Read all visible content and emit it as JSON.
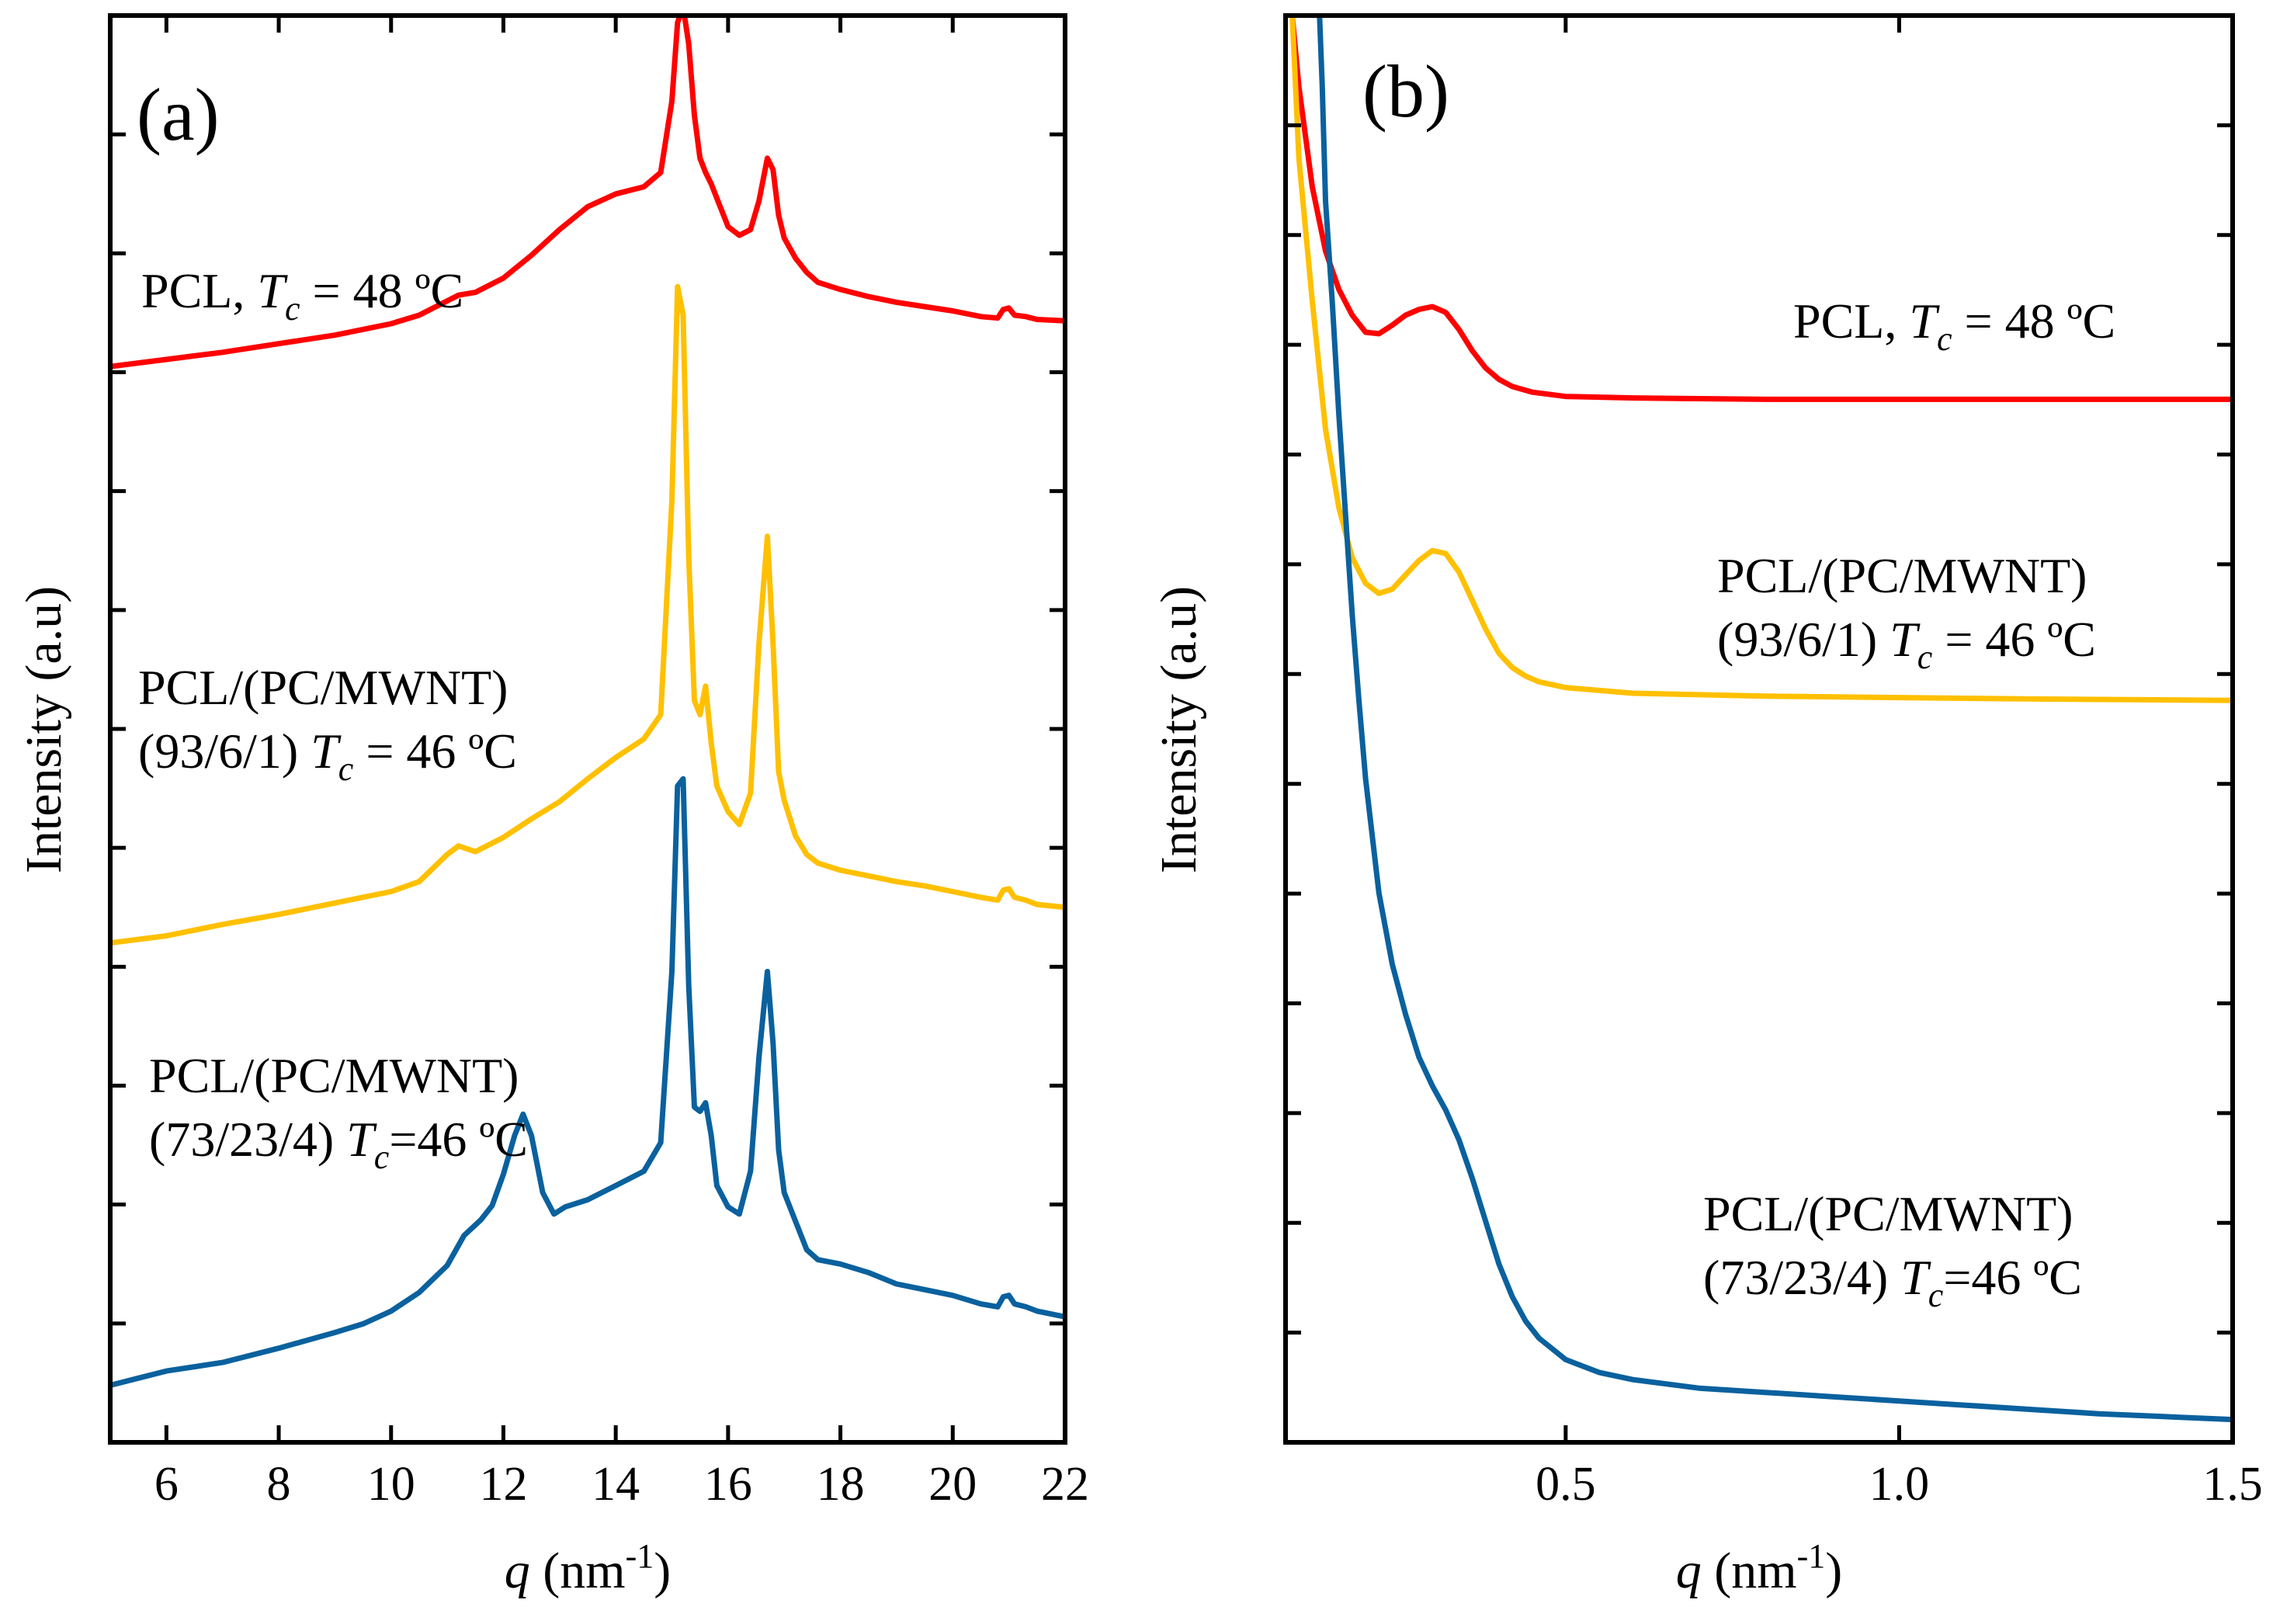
{
  "chart_data": [
    {
      "id": "a",
      "type": "line",
      "panel_label": "(a)",
      "xlabel": {
        "symbol": "q",
        "unit_open": " (nm",
        "unit_sup": "-1",
        "unit_close": ")"
      },
      "ylabel": "Intensity (a.u)",
      "xlim": [
        5,
        22
      ],
      "ylim": [
        0,
        100
      ],
      "xticks": [
        6,
        8,
        10,
        12,
        14,
        16,
        18,
        20,
        22
      ],
      "xtick_labels": [
        "6",
        "8",
        "10",
        "12",
        "14",
        "16",
        "18",
        "20",
        "22"
      ],
      "series": [
        {
          "name": "PCL, Tc = 48 ºC",
          "color": "#ff0000",
          "label_lines": [
            [
              {
                "t": "PCL, "
              },
              {
                "t": "T",
                "i": true
              },
              {
                "t": "c",
                "sub": true
              },
              {
                "t": " = 48 ºC"
              }
            ]
          ],
          "x": [
            5.0,
            6.0,
            7.0,
            8.0,
            9.0,
            10.0,
            10.5,
            11.0,
            11.2,
            11.5,
            12.0,
            12.5,
            13.0,
            13.5,
            14.0,
            14.5,
            14.8,
            15.0,
            15.1,
            15.2,
            15.3,
            15.4,
            15.5,
            15.6,
            15.7,
            15.8,
            16.0,
            16.2,
            16.4,
            16.55,
            16.7,
            16.8,
            16.9,
            17.0,
            17.2,
            17.4,
            17.6,
            18.0,
            18.5,
            19.0,
            19.5,
            20.0,
            20.5,
            20.8,
            20.9,
            21.0,
            21.1,
            21.3,
            21.5,
            22.0
          ],
          "y": [
            75.4,
            75.9,
            76.4,
            77.0,
            77.6,
            78.4,
            79.0,
            80.0,
            80.4,
            80.6,
            81.6,
            83.2,
            85.0,
            86.6,
            87.5,
            88.0,
            89.0,
            94.0,
            99.5,
            100.6,
            98.0,
            93.0,
            90.0,
            89.0,
            88.2,
            87.2,
            85.2,
            84.6,
            85.0,
            87.0,
            90.0,
            89.2,
            86.0,
            84.4,
            83.0,
            82.0,
            81.3,
            80.8,
            80.3,
            79.9,
            79.6,
            79.3,
            78.9,
            78.8,
            79.4,
            79.5,
            79.0,
            78.9,
            78.7,
            78.6
          ]
        },
        {
          "name": "PCL/(PC/MWNT) (93/6/1) Tc = 46 ºC",
          "color": "#ffc000",
          "label_lines": [
            [
              {
                "t": "PCL/(PC/MWNT)"
              }
            ],
            [
              {
                "t": "(93/6/1) "
              },
              {
                "t": "T",
                "i": true
              },
              {
                "t": "c",
                "sub": true
              },
              {
                "t": " = 46 ºC"
              }
            ]
          ],
          "x": [
            5.0,
            6.0,
            7.0,
            8.0,
            9.0,
            10.0,
            10.5,
            11.0,
            11.2,
            11.5,
            12.0,
            12.5,
            13.0,
            13.5,
            14.0,
            14.5,
            14.8,
            15.0,
            15.1,
            15.2,
            15.3,
            15.4,
            15.5,
            15.6,
            15.7,
            15.8,
            16.0,
            16.2,
            16.4,
            16.55,
            16.7,
            16.8,
            16.9,
            17.0,
            17.2,
            17.4,
            17.6,
            18.0,
            18.5,
            19.0,
            19.5,
            20.0,
            20.5,
            20.8,
            20.9,
            21.0,
            21.1,
            21.3,
            21.5,
            22.0
          ],
          "y": [
            35.0,
            35.5,
            36.3,
            37.0,
            37.8,
            38.6,
            39.3,
            41.2,
            41.8,
            41.4,
            42.4,
            43.7,
            44.9,
            46.5,
            48.0,
            49.3,
            51.0,
            66.0,
            81.0,
            79.0,
            62.0,
            52.0,
            51.0,
            53.0,
            49.0,
            46.0,
            44.2,
            43.3,
            45.5,
            56.0,
            63.5,
            56.0,
            47.0,
            45.0,
            42.5,
            41.2,
            40.6,
            40.1,
            39.7,
            39.3,
            39.0,
            38.6,
            38.2,
            38.0,
            38.7,
            38.8,
            38.2,
            38.0,
            37.7,
            37.5
          ]
        },
        {
          "name": "PCL/(PC/MWNT) (73/23/4) Tc=46 ºC",
          "color": "#0a619e",
          "label_lines": [
            [
              {
                "t": "PCL/(PC/MWNT)"
              }
            ],
            [
              {
                "t": "(73/23/4) "
              },
              {
                "t": "T",
                "i": true
              },
              {
                "t": "c",
                "sub": true
              },
              {
                "t": "=46 ºC"
              }
            ]
          ],
          "x": [
            5.0,
            5.5,
            6.0,
            7.0,
            8.0,
            9.0,
            9.5,
            10.0,
            10.5,
            11.0,
            11.3,
            11.6,
            11.8,
            12.0,
            12.2,
            12.35,
            12.5,
            12.7,
            12.9,
            13.1,
            13.5,
            14.0,
            14.5,
            14.8,
            15.0,
            15.1,
            15.2,
            15.3,
            15.4,
            15.5,
            15.6,
            15.7,
            15.8,
            16.0,
            16.2,
            16.4,
            16.55,
            16.7,
            16.8,
            16.9,
            17.0,
            17.2,
            17.4,
            17.6,
            18.0,
            18.5,
            19.0,
            19.5,
            20.0,
            20.5,
            20.8,
            20.9,
            21.0,
            21.1,
            21.3,
            21.5,
            22.0
          ],
          "y": [
            4.0,
            4.5,
            5.0,
            5.6,
            6.6,
            7.7,
            8.3,
            9.2,
            10.5,
            12.4,
            14.5,
            15.6,
            16.6,
            18.8,
            21.5,
            23.0,
            21.5,
            17.5,
            16.0,
            16.5,
            17.0,
            18.0,
            19.0,
            21.0,
            33.0,
            46.0,
            46.5,
            32.0,
            23.5,
            23.2,
            23.8,
            21.5,
            18.0,
            16.5,
            16.0,
            19.0,
            27.0,
            33.0,
            28.0,
            20.5,
            17.5,
            15.5,
            13.5,
            12.8,
            12.5,
            11.9,
            11.1,
            10.7,
            10.3,
            9.7,
            9.5,
            10.2,
            10.3,
            9.7,
            9.5,
            9.2,
            8.8
          ]
        }
      ]
    },
    {
      "id": "b",
      "type": "line",
      "panel_label": "(b)",
      "xlabel": {
        "symbol": "q",
        "unit_open": " (nm",
        "unit_sup": "-1",
        "unit_close": ")"
      },
      "ylabel": "Intensity (a.u)",
      "xlim": [
        0.08,
        1.5
      ],
      "ylim": [
        0,
        100
      ],
      "xticks": [
        0.5,
        1.0,
        1.5
      ],
      "xtick_labels": [
        "0.5",
        "1.0",
        "1.5"
      ],
      "series": [
        {
          "name": "PCL, Tc = 48 ºC",
          "color": "#ff0000",
          "label_lines": [
            [
              {
                "t": "PCL, "
              },
              {
                "t": "T",
                "i": true
              },
              {
                "t": "c",
                "sub": true
              },
              {
                "t": " = 48 ºC"
              }
            ]
          ],
          "x": [
            0.09,
            0.1,
            0.12,
            0.14,
            0.16,
            0.18,
            0.2,
            0.22,
            0.24,
            0.26,
            0.28,
            0.3,
            0.32,
            0.34,
            0.36,
            0.38,
            0.4,
            0.42,
            0.45,
            0.5,
            0.6,
            0.8,
            1.0,
            1.2,
            1.5
          ],
          "y": [
            100.0,
            95.0,
            88.0,
            83.5,
            80.8,
            79.0,
            77.8,
            77.7,
            78.3,
            79.0,
            79.4,
            79.6,
            79.2,
            78.0,
            76.5,
            75.3,
            74.5,
            74.0,
            73.6,
            73.3,
            73.2,
            73.1,
            73.1,
            73.1,
            73.1
          ]
        },
        {
          "name": "PCL/(PC/MWNT) (93/6/1) Tc = 46 ºC",
          "color": "#ffc000",
          "label_lines": [
            [
              {
                "t": "PCL/(PC/MWNT)"
              }
            ],
            [
              {
                "t": "(93/6/1) "
              },
              {
                "t": "T",
                "i": true
              },
              {
                "t": "c",
                "sub": true
              },
              {
                "t": " = 46 ºC"
              }
            ]
          ],
          "x": [
            0.09,
            0.1,
            0.12,
            0.14,
            0.16,
            0.18,
            0.2,
            0.22,
            0.24,
            0.26,
            0.28,
            0.3,
            0.32,
            0.34,
            0.36,
            0.38,
            0.4,
            0.42,
            0.44,
            0.46,
            0.5,
            0.6,
            0.8,
            1.0,
            1.2,
            1.5
          ],
          "y": [
            100.0,
            90.0,
            80.0,
            71.0,
            65.5,
            62.0,
            60.2,
            59.5,
            59.8,
            60.8,
            61.8,
            62.5,
            62.3,
            61.0,
            59.0,
            57.0,
            55.3,
            54.3,
            53.7,
            53.3,
            52.9,
            52.5,
            52.3,
            52.2,
            52.1,
            52.0
          ]
        },
        {
          "name": "PCL/(PC/MWNT) (73/23/4) Tc=46 ºC",
          "color": "#0a619e",
          "label_lines": [
            [
              {
                "t": "PCL/(PC/MWNT)"
              }
            ],
            [
              {
                "t": "(73/23/4) "
              },
              {
                "t": "T",
                "i": true
              },
              {
                "t": "c",
                "sub": true
              },
              {
                "t": "=46 ºC"
              }
            ]
          ],
          "x": [
            0.131,
            0.135,
            0.14,
            0.15,
            0.16,
            0.17,
            0.18,
            0.19,
            0.2,
            0.22,
            0.24,
            0.26,
            0.28,
            0.3,
            0.32,
            0.34,
            0.36,
            0.38,
            0.4,
            0.42,
            0.44,
            0.46,
            0.5,
            0.55,
            0.6,
            0.7,
            0.8,
            0.9,
            1.0,
            1.1,
            1.2,
            1.3,
            1.4,
            1.5
          ],
          "y": [
            100.0,
            95.0,
            87.0,
            80.0,
            72.0,
            65.0,
            58.0,
            52.0,
            46.5,
            38.5,
            33.5,
            30.0,
            27.0,
            25.0,
            23.3,
            21.2,
            18.5,
            15.5,
            12.5,
            10.2,
            8.5,
            7.3,
            5.8,
            4.9,
            4.4,
            3.8,
            3.5,
            3.2,
            2.9,
            2.6,
            2.3,
            2.0,
            1.8,
            1.6
          ]
        }
      ]
    }
  ]
}
